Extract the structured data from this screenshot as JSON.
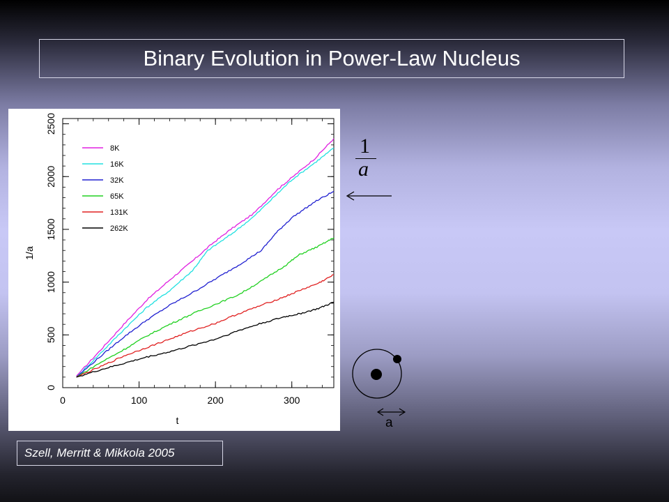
{
  "slide": {
    "title": "Binary Evolution in Power-Law Nucleus",
    "citation": "Szell, Merritt & Mikkola 2005"
  },
  "annotation": {
    "fraction_numerator": "1",
    "fraction_denominator": "a",
    "orbit_label": "a"
  },
  "chart_data": {
    "type": "line",
    "xlabel": "t",
    "ylabel": "1/a",
    "xlim": [
      0,
      355
    ],
    "ylim": [
      0,
      2550
    ],
    "x_ticks": [
      0,
      100,
      200,
      300
    ],
    "y_ticks": [
      0,
      500,
      1000,
      1500,
      2000,
      2500
    ],
    "legend_position": "top-left",
    "grid": false,
    "series": [
      {
        "name": "8K",
        "color": "#e020e0",
        "points": [
          [
            18,
            110
          ],
          [
            50,
            360
          ],
          [
            80,
            600
          ],
          [
            110,
            830
          ],
          [
            140,
            1020
          ],
          [
            170,
            1200
          ],
          [
            195,
            1360
          ],
          [
            220,
            1500
          ],
          [
            250,
            1650
          ],
          [
            280,
            1870
          ],
          [
            300,
            1990
          ],
          [
            330,
            2170
          ],
          [
            355,
            2360
          ]
        ]
      },
      {
        "name": "16K",
        "color": "#20e0e0",
        "points": [
          [
            18,
            100
          ],
          [
            50,
            330
          ],
          [
            80,
            550
          ],
          [
            110,
            760
          ],
          [
            140,
            920
          ],
          [
            170,
            1110
          ],
          [
            190,
            1300
          ],
          [
            220,
            1450
          ],
          [
            250,
            1620
          ],
          [
            280,
            1830
          ],
          [
            300,
            1970
          ],
          [
            330,
            2130
          ],
          [
            355,
            2270
          ]
        ]
      },
      {
        "name": "32K",
        "color": "#2020d0",
        "points": [
          [
            18,
            100
          ],
          [
            50,
            300
          ],
          [
            80,
            480
          ],
          [
            110,
            640
          ],
          [
            140,
            780
          ],
          [
            170,
            900
          ],
          [
            200,
            1030
          ],
          [
            230,
            1160
          ],
          [
            260,
            1300
          ],
          [
            280,
            1470
          ],
          [
            300,
            1610
          ],
          [
            330,
            1760
          ],
          [
            355,
            1860
          ]
        ]
      },
      {
        "name": "65K",
        "color": "#20d020",
        "points": [
          [
            18,
            100
          ],
          [
            50,
            240
          ],
          [
            80,
            360
          ],
          [
            110,
            490
          ],
          [
            140,
            600
          ],
          [
            170,
            700
          ],
          [
            200,
            790
          ],
          [
            230,
            880
          ],
          [
            260,
            1010
          ],
          [
            290,
            1150
          ],
          [
            310,
            1260
          ],
          [
            335,
            1340
          ],
          [
            355,
            1420
          ]
        ]
      },
      {
        "name": "131K",
        "color": "#e02020",
        "points": [
          [
            18,
            100
          ],
          [
            50,
            200
          ],
          [
            80,
            300
          ],
          [
            110,
            380
          ],
          [
            140,
            460
          ],
          [
            170,
            540
          ],
          [
            200,
            610
          ],
          [
            230,
            700
          ],
          [
            260,
            780
          ],
          [
            290,
            860
          ],
          [
            310,
            920
          ],
          [
            335,
            990
          ],
          [
            355,
            1070
          ]
        ]
      },
      {
        "name": "262K",
        "color": "#000000",
        "points": [
          [
            18,
            100
          ],
          [
            50,
            170
          ],
          [
            80,
            230
          ],
          [
            110,
            290
          ],
          [
            140,
            340
          ],
          [
            170,
            400
          ],
          [
            200,
            460
          ],
          [
            230,
            540
          ],
          [
            260,
            610
          ],
          [
            290,
            670
          ],
          [
            310,
            700
          ],
          [
            335,
            750
          ],
          [
            355,
            810
          ]
        ]
      }
    ]
  }
}
